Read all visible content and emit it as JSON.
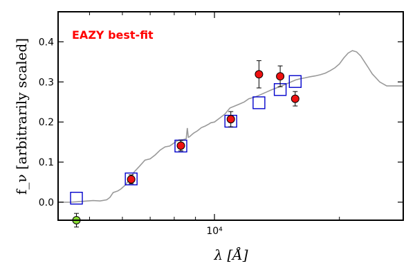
{
  "chart_data": {
    "type": "scatter",
    "title": "",
    "annotation": {
      "text": "EAZY best-fit",
      "color": "#ff0000"
    },
    "xlabel": "λ [Å]",
    "ylabel": "f_ν [arbitrarily scaled]",
    "x_scale": "log",
    "xlim": [
      4200,
      28500
    ],
    "ylim": [
      -0.045,
      0.475
    ],
    "y_ticks": [
      {
        "value": 0.0,
        "label": "0.0"
      },
      {
        "value": 0.1,
        "label": "0.1"
      },
      {
        "value": 0.2,
        "label": "0.2"
      },
      {
        "value": 0.3,
        "label": "0.3"
      },
      {
        "value": 0.4,
        "label": "0.4"
      }
    ],
    "x_ticks_major": [
      {
        "value": 10000,
        "label": "10⁴"
      }
    ],
    "x_ticks_minor": [
      5000,
      6000,
      7000,
      8000,
      9000,
      20000
    ],
    "grid": false,
    "sed_color": "#999999",
    "model_color": "#0000cc",
    "observed_color": "#ee1111",
    "upper_limit_color": "#88dd33",
    "sed": {
      "x": [
        4200,
        4500,
        4800,
        5100,
        5300,
        5500,
        5600,
        5700,
        5850,
        5950,
        6100,
        6250,
        6400,
        6600,
        6800,
        7000,
        7200,
        7400,
        7600,
        7800,
        8000,
        8200,
        8400,
        8550,
        8600,
        8650,
        8700,
        8900,
        9100,
        9300,
        9500,
        9700,
        9800,
        10000,
        10300,
        10600,
        10900,
        11200,
        11500,
        11800,
        12100,
        12500,
        12900,
        13300,
        13700,
        14100,
        14500,
        14900,
        15300,
        15700,
        16100,
        16500,
        17000,
        17500,
        18000,
        18500,
        19000,
        19500,
        20000,
        20500,
        21000,
        21500,
        22000,
        22500,
        23000,
        23500,
        24000,
        24500,
        25000,
        25500,
        26000,
        26500,
        27000,
        27500,
        28000,
        28500
      ],
      "y": [
        0.0,
        0.0,
        0.002,
        0.004,
        0.003,
        0.006,
        0.012,
        0.024,
        0.028,
        0.033,
        0.043,
        0.058,
        0.075,
        0.09,
        0.105,
        0.108,
        0.118,
        0.13,
        0.138,
        0.14,
        0.148,
        0.155,
        0.156,
        0.158,
        0.185,
        0.162,
        0.163,
        0.172,
        0.178,
        0.186,
        0.19,
        0.195,
        0.198,
        0.2,
        0.21,
        0.22,
        0.235,
        0.24,
        0.245,
        0.25,
        0.258,
        0.262,
        0.268,
        0.274,
        0.28,
        0.285,
        0.29,
        0.295,
        0.3,
        0.305,
        0.308,
        0.31,
        0.313,
        0.315,
        0.318,
        0.322,
        0.328,
        0.335,
        0.345,
        0.36,
        0.372,
        0.378,
        0.375,
        0.365,
        0.35,
        0.335,
        0.32,
        0.31,
        0.3,
        0.295,
        0.29,
        0.29,
        0.29,
        0.29,
        0.29,
        0.29
      ]
    },
    "model_points": {
      "x": [
        4650,
        6300,
        8300,
        10950,
        12800,
        14400,
        15650
      ],
      "y": [
        0.01,
        0.058,
        0.14,
        0.202,
        0.248,
        0.281,
        0.301
      ]
    },
    "observed": {
      "x": [
        6300,
        8300,
        10950,
        12800,
        14400,
        15650
      ],
      "y": [
        0.057,
        0.141,
        0.207,
        0.319,
        0.314,
        0.258
      ],
      "yerr": [
        0.011,
        0.013,
        0.019,
        0.034,
        0.026,
        0.018
      ]
    },
    "upper_limits": {
      "x": [
        4650
      ],
      "y": [
        -0.045
      ],
      "yerr": [
        0.017
      ]
    }
  }
}
